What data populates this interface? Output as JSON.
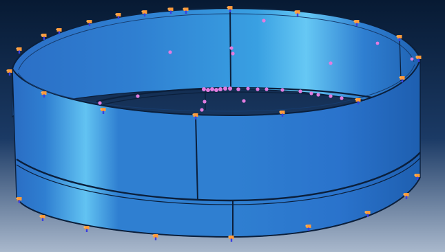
{
  "viewport": {
    "background_top": "#071a33",
    "background_bottom": "#a9b8cc",
    "model_color": "#2f7fd1",
    "model_light": "#62c3f2",
    "model_dark": "#1e5fb0",
    "edge_color": "#0b1f3b"
  },
  "markers": {
    "boundary_condition_color": "#ff9b3a",
    "boundary_condition_accent": "#3b3fe0",
    "load_point_color": "#e37ce0",
    "boundary_condition_icon": "triad-constraint-icon",
    "load_point_icon": "load-point-icon"
  }
}
